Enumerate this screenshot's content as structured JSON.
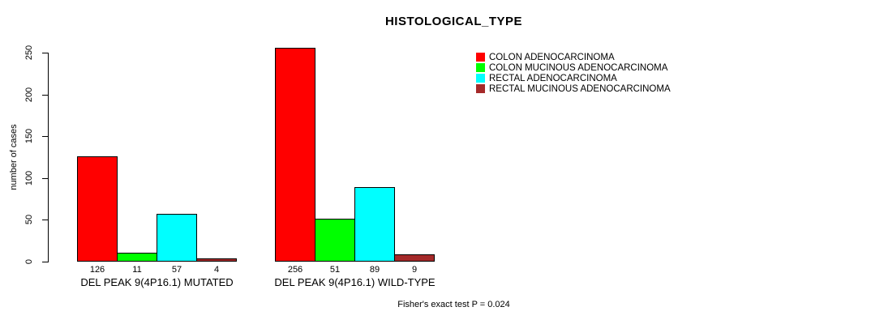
{
  "chart_data": {
    "type": "bar",
    "title": "HISTOLOGICAL_TYPE",
    "ylabel": "number of cases",
    "ylim": [
      0,
      250
    ],
    "yticks": [
      0,
      50,
      100,
      150,
      200,
      250
    ],
    "grid": false,
    "legend_position": "top-right",
    "categories": [
      "DEL PEAK 9(4P16.1) MUTATED",
      "DEL PEAK 9(4P16.1) WILD-TYPE"
    ],
    "series": [
      {
        "name": "COLON ADENOCARCINOMA",
        "color": "#ff0000",
        "values": [
          126,
          256
        ]
      },
      {
        "name": "COLON MUCINOUS ADENOCARCINOMA",
        "color": "#00ff00",
        "values": [
          11,
          51
        ]
      },
      {
        "name": "RECTAL ADENOCARCINOMA",
        "color": "#00ffff",
        "values": [
          57,
          89
        ]
      },
      {
        "name": "RECTAL MUCINOUS ADENOCARCINOMA",
        "color": "#a52a2a",
        "values": [
          4,
          9
        ]
      }
    ],
    "annotation": "Fisher's exact test P = 0.024"
  }
}
